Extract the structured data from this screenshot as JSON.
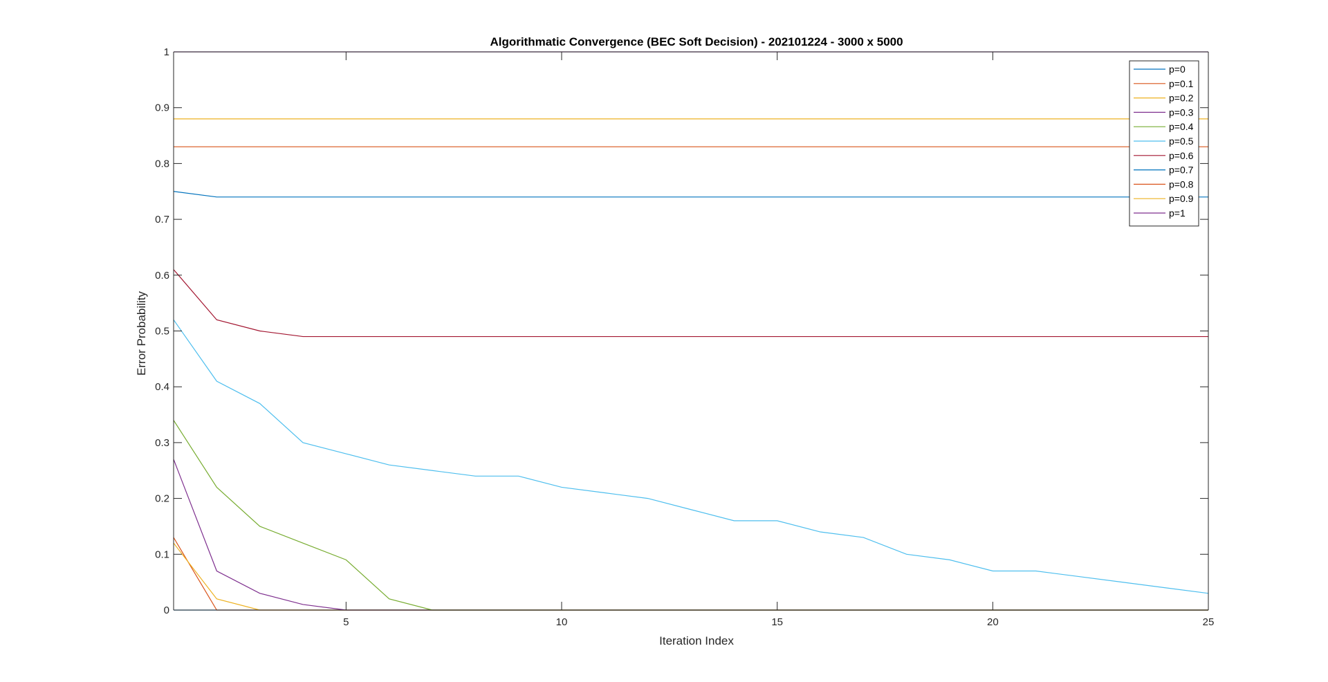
{
  "chart_data": {
    "type": "line",
    "title": "Algorithmatic Convergence (BEC Soft Decision) - 202101224 - 3000 x 5000",
    "xlabel": "Iteration Index",
    "ylabel": "Error Probability",
    "xlim": [
      1,
      25
    ],
    "ylim": [
      0,
      1
    ],
    "xticks": [
      5,
      10,
      15,
      20,
      25
    ],
    "yticks": [
      0,
      0.1,
      0.2,
      0.3,
      0.4,
      0.5,
      0.6,
      0.7,
      0.8,
      0.9,
      1
    ],
    "grid": false,
    "legend_position": "top-right",
    "x": [
      1,
      2,
      3,
      4,
      5,
      6,
      7,
      8,
      9,
      10,
      11,
      12,
      13,
      14,
      15,
      16,
      17,
      18,
      19,
      20,
      21,
      22,
      23,
      24,
      25
    ],
    "series": [
      {
        "name": "p=0",
        "color": "#0072BD",
        "values": [
          0,
          0,
          0,
          0,
          0,
          0,
          0,
          0,
          0,
          0,
          0,
          0,
          0,
          0,
          0,
          0,
          0,
          0,
          0,
          0,
          0,
          0,
          0,
          0,
          0
        ]
      },
      {
        "name": "p=0.1",
        "color": "#D95319",
        "values": [
          0.13,
          0,
          0,
          0,
          0,
          0,
          0,
          0,
          0,
          0,
          0,
          0,
          0,
          0,
          0,
          0,
          0,
          0,
          0,
          0,
          0,
          0,
          0,
          0,
          0
        ]
      },
      {
        "name": "p=0.2",
        "color": "#EDB120",
        "values": [
          0.12,
          0.02,
          0,
          0,
          0,
          0,
          0,
          0,
          0,
          0,
          0,
          0,
          0,
          0,
          0,
          0,
          0,
          0,
          0,
          0,
          0,
          0,
          0,
          0,
          0
        ]
      },
      {
        "name": "p=0.3",
        "color": "#7E2F8E",
        "values": [
          0.27,
          0.07,
          0.03,
          0.01,
          0,
          0,
          0,
          0,
          0,
          0,
          0,
          0,
          0,
          0,
          0,
          0,
          0,
          0,
          0,
          0,
          0,
          0,
          0,
          0,
          0
        ]
      },
      {
        "name": "p=0.4",
        "color": "#77AC30",
        "values": [
          0.34,
          0.22,
          0.15,
          0.12,
          0.09,
          0.02,
          0,
          0,
          0,
          0,
          0,
          0,
          0,
          0,
          0,
          0,
          0,
          0,
          0,
          0,
          0,
          0,
          0,
          0,
          0
        ]
      },
      {
        "name": "p=0.5",
        "color": "#4DBEEE",
        "values": [
          0.52,
          0.41,
          0.37,
          0.3,
          0.28,
          0.26,
          0.25,
          0.24,
          0.24,
          0.22,
          0.21,
          0.2,
          0.18,
          0.16,
          0.16,
          0.14,
          0.13,
          0.1,
          0.09,
          0.07,
          0.07,
          0.06,
          0.05,
          0.04,
          0.03
        ]
      },
      {
        "name": "p=0.6",
        "color": "#A2142F",
        "values": [
          0.61,
          0.52,
          0.5,
          0.49,
          0.49,
          0.49,
          0.49,
          0.49,
          0.49,
          0.49,
          0.49,
          0.49,
          0.49,
          0.49,
          0.49,
          0.49,
          0.49,
          0.49,
          0.49,
          0.49,
          0.49,
          0.49,
          0.49,
          0.49,
          0.49
        ]
      },
      {
        "name": "p=0.7",
        "color": "#0072BD",
        "values": [
          0.75,
          0.74,
          0.74,
          0.74,
          0.74,
          0.74,
          0.74,
          0.74,
          0.74,
          0.74,
          0.74,
          0.74,
          0.74,
          0.74,
          0.74,
          0.74,
          0.74,
          0.74,
          0.74,
          0.74,
          0.74,
          0.74,
          0.74,
          0.74,
          0.74
        ]
      },
      {
        "name": "p=0.8",
        "color": "#D95319",
        "values": [
          0.83,
          0.83,
          0.83,
          0.83,
          0.83,
          0.83,
          0.83,
          0.83,
          0.83,
          0.83,
          0.83,
          0.83,
          0.83,
          0.83,
          0.83,
          0.83,
          0.83,
          0.83,
          0.83,
          0.83,
          0.83,
          0.83,
          0.83,
          0.83,
          0.83
        ]
      },
      {
        "name": "p=0.9",
        "color": "#EDB120",
        "values": [
          0.88,
          0.88,
          0.88,
          0.88,
          0.88,
          0.88,
          0.88,
          0.88,
          0.88,
          0.88,
          0.88,
          0.88,
          0.88,
          0.88,
          0.88,
          0.88,
          0.88,
          0.88,
          0.88,
          0.88,
          0.88,
          0.88,
          0.88,
          0.88,
          0.88
        ]
      },
      {
        "name": "p=1",
        "color": "#7E2F8E",
        "values": [
          1,
          1,
          1,
          1,
          1,
          1,
          1,
          1,
          1,
          1,
          1,
          1,
          1,
          1,
          1,
          1,
          1,
          1,
          1,
          1,
          1,
          1,
          1,
          1,
          1
        ]
      }
    ]
  }
}
